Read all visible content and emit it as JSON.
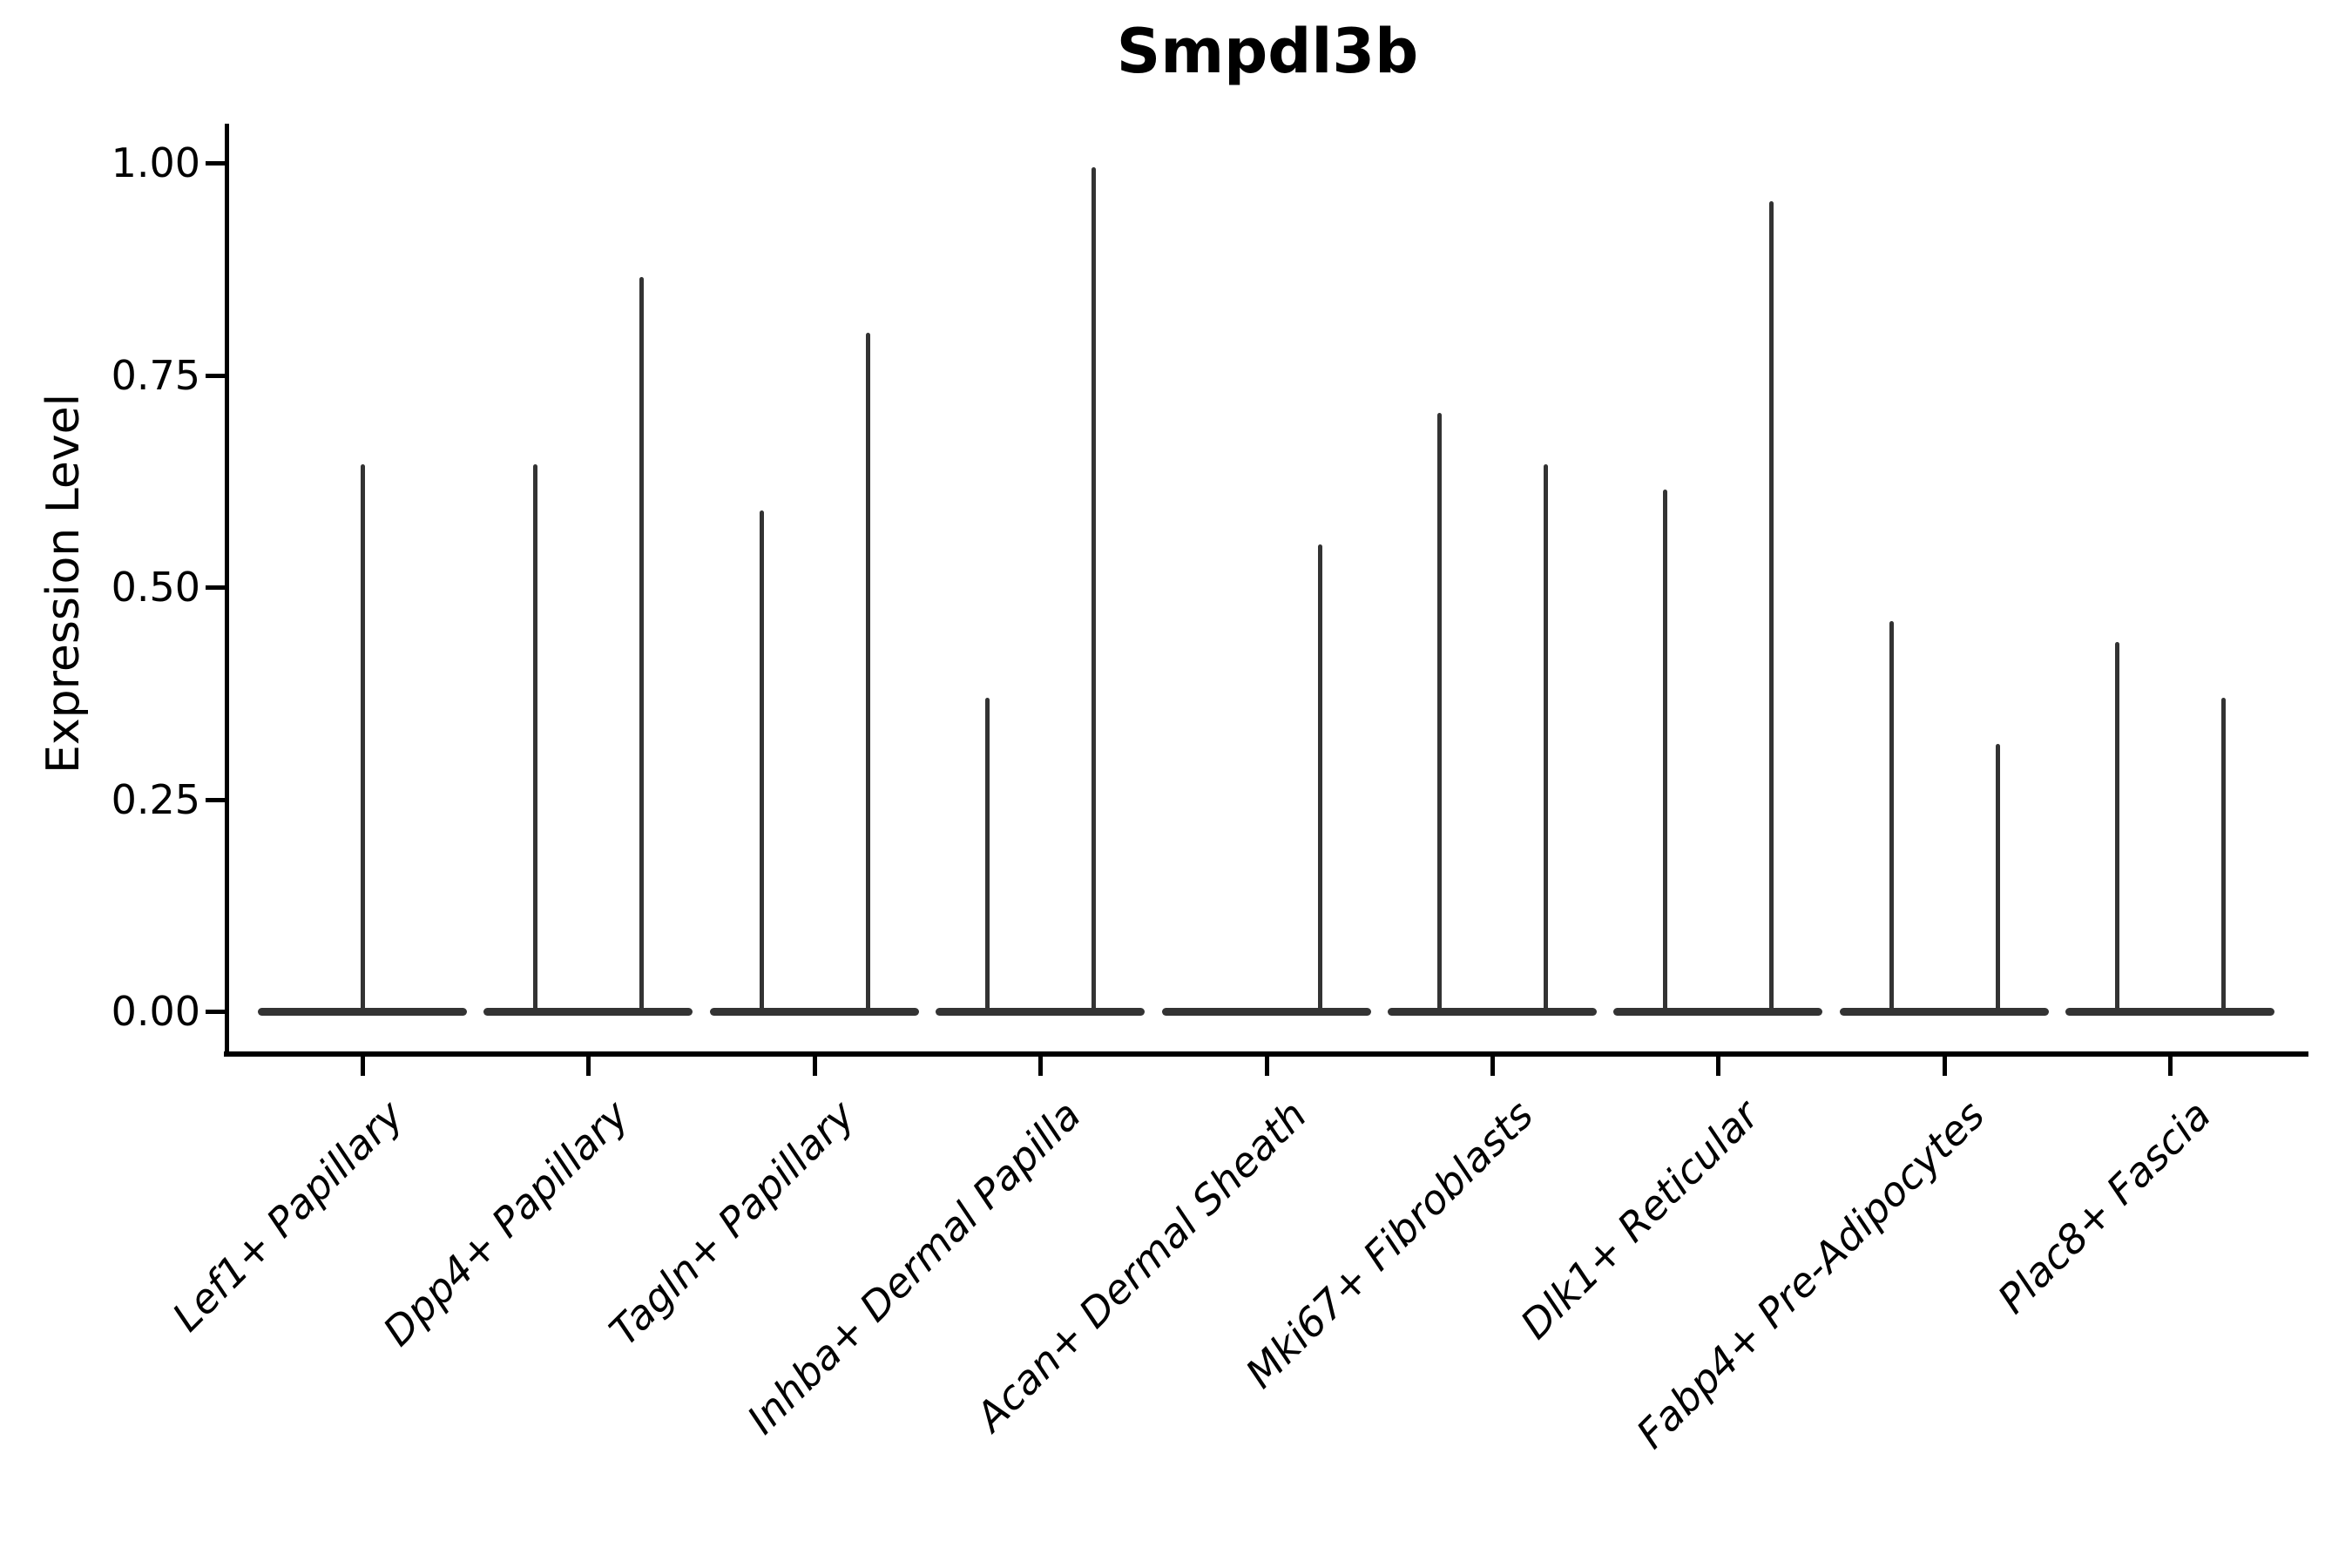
{
  "chart_data": {
    "type": "violin",
    "title": "Smpdl3b",
    "ylabel": "Expression Level",
    "xlabel": "",
    "grid": false,
    "legend": "none",
    "ylim": [
      0,
      1.05
    ],
    "yticks": [
      {
        "label": "1.00",
        "value": 1.0
      },
      {
        "label": "0.75",
        "value": 0.75
      },
      {
        "label": "0.50",
        "value": 0.5
      },
      {
        "label": "0.25",
        "value": 0.25
      },
      {
        "label": "0.00",
        "value": 0.0
      }
    ],
    "categories": [
      "Lef1+ Papillary",
      "Dpp4+ Papillary",
      "Tagln+ Papillary",
      "Inhba+ Dermal Papilla",
      "Acan+ Dermal Sheath",
      "Mki67+ Fibroblasts",
      "Dlk1+ Reticular",
      "Fabp4+ Pre-Adipocytes",
      "Plac8+ Fascia"
    ],
    "violins": [
      {
        "category": "Lef1+ Papillary",
        "base_value": 0,
        "spikes": [
          {
            "position": "center",
            "max": 0.645
          }
        ]
      },
      {
        "category": "Dpp4+ Papillary",
        "base_value": 0,
        "spikes": [
          {
            "position": "left",
            "max": 0.645
          },
          {
            "position": "right",
            "max": 0.865
          }
        ]
      },
      {
        "category": "Tagln+ Papillary",
        "base_value": 0,
        "spikes": [
          {
            "position": "left",
            "max": 0.59
          },
          {
            "position": "right",
            "max": 0.8
          }
        ]
      },
      {
        "category": "Inhba+ Dermal Papilla",
        "base_value": 0,
        "spikes": [
          {
            "position": "left",
            "max": 0.37
          },
          {
            "position": "right",
            "max": 0.995
          }
        ]
      },
      {
        "category": "Acan+ Dermal Sheath",
        "base_value": 0,
        "spikes": [
          {
            "position": "right",
            "max": 0.55
          }
        ]
      },
      {
        "category": "Mki67+ Fibroblasts",
        "base_value": 0,
        "spikes": [
          {
            "position": "left",
            "max": 0.705
          },
          {
            "position": "right",
            "max": 0.645
          }
        ]
      },
      {
        "category": "Dlk1+ Reticular",
        "base_value": 0,
        "spikes": [
          {
            "position": "left",
            "max": 0.615
          },
          {
            "position": "right",
            "max": 0.955
          }
        ]
      },
      {
        "category": "Fabp4+ Pre-Adipocytes",
        "base_value": 0,
        "spikes": [
          {
            "position": "left",
            "max": 0.46
          },
          {
            "position": "right",
            "max": 0.315
          }
        ]
      },
      {
        "category": "Plac8+ Fascia",
        "base_value": 0,
        "spikes": [
          {
            "position": "left",
            "max": 0.435
          },
          {
            "position": "right",
            "max": 0.37
          }
        ]
      }
    ],
    "colors": {
      "violin": "#333333",
      "axis": "#000000",
      "text": "#000000",
      "background": "#ffffff"
    }
  }
}
